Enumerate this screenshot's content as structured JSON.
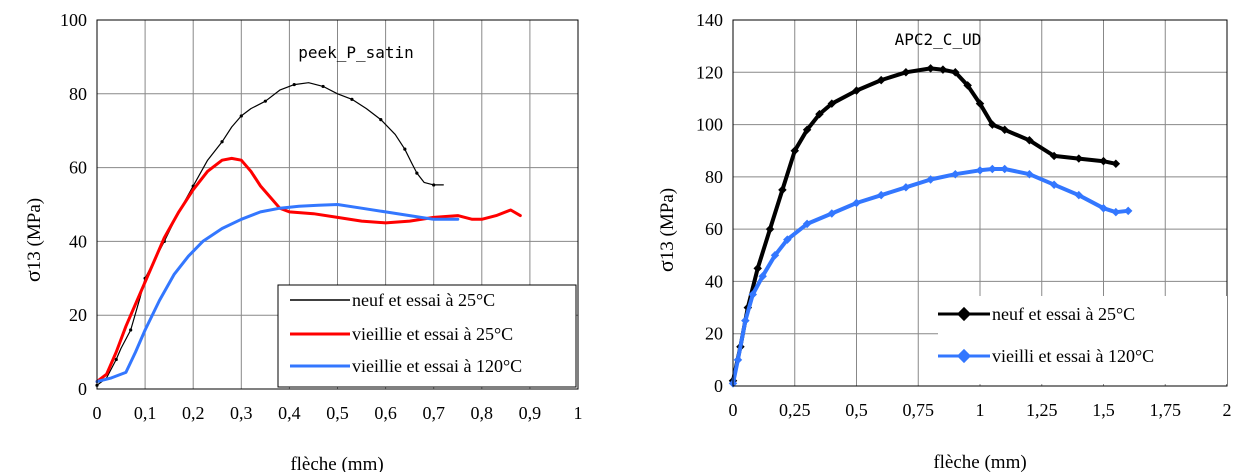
{
  "chart_data": [
    {
      "type": "line",
      "title": "peek_P_satin",
      "xlabel": "flèche (mm)",
      "ylabel_main": "σ",
      "ylabel_rest": "13 (MPa)",
      "xlim": [
        0,
        1
      ],
      "ylim": [
        0,
        100
      ],
      "x_ticks": [
        0,
        0.1,
        0.2,
        0.3,
        0.4,
        0.5,
        0.6,
        0.7,
        0.8,
        0.9,
        1
      ],
      "x_tick_labels": [
        "0",
        "0,1",
        "0,2",
        "0,3",
        "0,4",
        "0,5",
        "0,6",
        "0,7",
        "0,8",
        "0,9",
        "1"
      ],
      "y_ticks": [
        0,
        20,
        40,
        60,
        80,
        100
      ],
      "y_tick_labels": [
        "0",
        "20",
        "40",
        "60",
        "80",
        "100"
      ],
      "grid": true,
      "legend_position": "bottom-right",
      "series": [
        {
          "name": "neuf et essai à 25°C",
          "color": "#000000",
          "width": 1.2,
          "marker": "dot",
          "points": [
            [
              0,
              1
            ],
            [
              0.02,
              3
            ],
            [
              0.04,
              8
            ],
            [
              0.05,
              11
            ],
            [
              0.07,
              16
            ],
            [
              0.09,
              25
            ],
            [
              0.1,
              30
            ],
            [
              0.12,
              35
            ],
            [
              0.14,
              40
            ],
            [
              0.17,
              48
            ],
            [
              0.2,
              55
            ],
            [
              0.23,
              62
            ],
            [
              0.26,
              67
            ],
            [
              0.28,
              71
            ],
            [
              0.3,
              74
            ],
            [
              0.32,
              76
            ],
            [
              0.35,
              78
            ],
            [
              0.38,
              81
            ],
            [
              0.41,
              82.5
            ],
            [
              0.44,
              83
            ],
            [
              0.47,
              82
            ],
            [
              0.5,
              80
            ],
            [
              0.53,
              78.5
            ],
            [
              0.56,
              76
            ],
            [
              0.59,
              73
            ],
            [
              0.62,
              69
            ],
            [
              0.64,
              65
            ],
            [
              0.655,
              61
            ],
            [
              0.665,
              58.5
            ],
            [
              0.68,
              56
            ],
            [
              0.7,
              55.3
            ],
            [
              0.72,
              55.3
            ]
          ]
        },
        {
          "name": "vieillie et essai à 25°C",
          "color": "#ff0000",
          "width": 3,
          "marker": "none",
          "points": [
            [
              0,
              2
            ],
            [
              0.02,
              4
            ],
            [
              0.04,
              10
            ],
            [
              0.06,
              17
            ],
            [
              0.08,
              23
            ],
            [
              0.1,
              29
            ],
            [
              0.12,
              35
            ],
            [
              0.14,
              41
            ],
            [
              0.17,
              48
            ],
            [
              0.2,
              54
            ],
            [
              0.23,
              59
            ],
            [
              0.26,
              62
            ],
            [
              0.28,
              62.5
            ],
            [
              0.3,
              62
            ],
            [
              0.32,
              59
            ],
            [
              0.34,
              55
            ],
            [
              0.36,
              52
            ],
            [
              0.38,
              49
            ],
            [
              0.4,
              48
            ],
            [
              0.45,
              47.5
            ],
            [
              0.5,
              46.5
            ],
            [
              0.55,
              45.5
            ],
            [
              0.6,
              45
            ],
            [
              0.65,
              45.5
            ],
            [
              0.7,
              46.5
            ],
            [
              0.75,
              47
            ],
            [
              0.78,
              46
            ],
            [
              0.8,
              46
            ],
            [
              0.83,
              47
            ],
            [
              0.86,
              48.5
            ],
            [
              0.88,
              47
            ]
          ]
        },
        {
          "name": "vieillie et essai à 120°C",
          "color": "#3377ff",
          "width": 3,
          "marker": "none",
          "points": [
            [
              0,
              2
            ],
            [
              0.03,
              3
            ],
            [
              0.06,
              4.5
            ],
            [
              0.08,
              10
            ],
            [
              0.1,
              16
            ],
            [
              0.13,
              24
            ],
            [
              0.16,
              31
            ],
            [
              0.19,
              36
            ],
            [
              0.22,
              40
            ],
            [
              0.26,
              43.5
            ],
            [
              0.3,
              46
            ],
            [
              0.34,
              48
            ],
            [
              0.38,
              49
            ],
            [
              0.42,
              49.5
            ],
            [
              0.46,
              49.8
            ],
            [
              0.5,
              50
            ],
            [
              0.55,
              49
            ],
            [
              0.6,
              48
            ],
            [
              0.65,
              47
            ],
            [
              0.7,
              46
            ],
            [
              0.75,
              46
            ]
          ]
        }
      ]
    },
    {
      "type": "line",
      "title": "APC2_C_UD",
      "xlabel": "flèche (mm)",
      "ylabel_main": "σ",
      "ylabel_rest": "13 (MPa)",
      "xlim": [
        0,
        2
      ],
      "ylim": [
        0,
        140
      ],
      "x_ticks": [
        0,
        0.25,
        0.5,
        0.75,
        1,
        1.25,
        1.5,
        1.75,
        2
      ],
      "x_tick_labels": [
        "0",
        "0,25",
        "0,5",
        "0,75",
        "1",
        "1,25",
        "1,5",
        "1,75",
        "2"
      ],
      "y_ticks": [
        0,
        20,
        40,
        60,
        80,
        100,
        120,
        140
      ],
      "y_tick_labels": [
        "0",
        "20",
        "40",
        "60",
        "80",
        "100",
        "120",
        "140"
      ],
      "grid": true,
      "legend_position": "bottom-right",
      "series": [
        {
          "name": "neuf et essai à 25°C",
          "color": "#000000",
          "width": 4,
          "marker": "diamond",
          "points": [
            [
              0,
              2
            ],
            [
              0.03,
              15
            ],
            [
              0.06,
              30
            ],
            [
              0.1,
              45
            ],
            [
              0.15,
              60
            ],
            [
              0.2,
              75
            ],
            [
              0.25,
              90
            ],
            [
              0.3,
              98
            ],
            [
              0.35,
              104
            ],
            [
              0.4,
              108
            ],
            [
              0.5,
              113
            ],
            [
              0.6,
              117
            ],
            [
              0.7,
              120
            ],
            [
              0.8,
              121.5
            ],
            [
              0.85,
              121
            ],
            [
              0.9,
              120
            ],
            [
              0.95,
              115
            ],
            [
              1,
              108
            ],
            [
              1.05,
              100
            ],
            [
              1.1,
              98
            ],
            [
              1.2,
              94
            ],
            [
              1.3,
              88
            ],
            [
              1.4,
              87
            ],
            [
              1.5,
              86
            ],
            [
              1.55,
              85
            ]
          ]
        },
        {
          "name": "vieilli et essai à 120°C",
          "color": "#3377ff",
          "width": 4,
          "marker": "diamond",
          "points": [
            [
              0,
              1
            ],
            [
              0.02,
              10
            ],
            [
              0.05,
              25
            ],
            [
              0.08,
              35
            ],
            [
              0.12,
              42
            ],
            [
              0.17,
              50
            ],
            [
              0.22,
              56
            ],
            [
              0.3,
              62
            ],
            [
              0.4,
              66
            ],
            [
              0.5,
              70
            ],
            [
              0.6,
              73
            ],
            [
              0.7,
              76
            ],
            [
              0.8,
              79
            ],
            [
              0.9,
              81
            ],
            [
              1,
              82.5
            ],
            [
              1.05,
              83
            ],
            [
              1.1,
              83
            ],
            [
              1.2,
              81
            ],
            [
              1.3,
              77
            ],
            [
              1.4,
              73
            ],
            [
              1.5,
              68
            ],
            [
              1.55,
              66.5
            ],
            [
              1.6,
              67
            ]
          ]
        }
      ]
    }
  ]
}
